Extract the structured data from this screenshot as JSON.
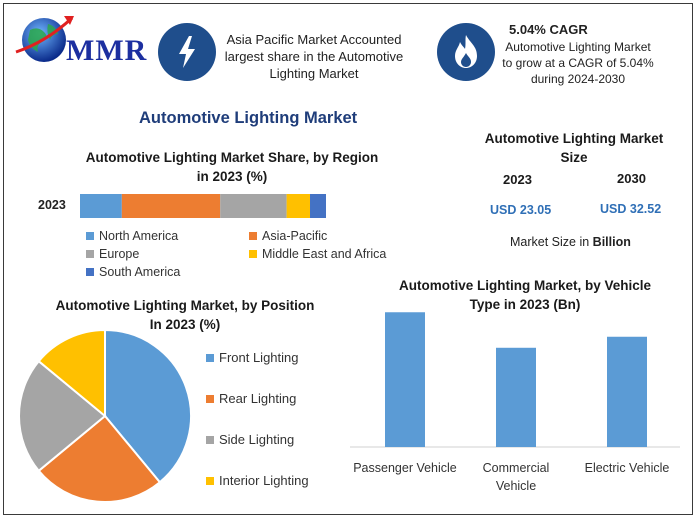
{
  "header": {
    "logo_text": "MMR",
    "badge1_icon": "lightning-icon",
    "badge1_text": [
      "Asia Pacific Market Accounted",
      "largest share in the Automotive",
      "Lighting Market"
    ],
    "badge2_icon": "flame-icon",
    "cagr_title": "5.04% CAGR",
    "badge2_text": [
      "Automotive Lighting Market",
      "to grow at a CAGR of 5.04%",
      "during 2024-2030"
    ]
  },
  "main_title": "Automotive Lighting Market",
  "market_size": {
    "title": [
      "Automotive Lighting Market",
      "Size"
    ],
    "year1": "2023",
    "year2": "2030",
    "value1": "USD 23.05",
    "value2": "USD 32.52",
    "unit_prefix": "Market Size in ",
    "unit_bold": "Billion"
  },
  "colors": {
    "blue": "#5b9bd5",
    "orange": "#ed7d31",
    "gray": "#a5a5a5",
    "yellow": "#ffc000",
    "darkblue": "#4472c4"
  },
  "chart_data": [
    {
      "type": "bar",
      "orientation": "horizontal-stacked",
      "title": [
        "Automotive Lighting Market Share, by Region",
        "in 2023 (%)"
      ],
      "categories": [
        "2023"
      ],
      "series": [
        {
          "name": "North America",
          "values": [
            17
          ],
          "color": "#5b9bd5"
        },
        {
          "name": "Asia-Pacific",
          "values": [
            40
          ],
          "color": "#ed7d31"
        },
        {
          "name": "Europe",
          "values": [
            27
          ],
          "color": "#a5a5a5"
        },
        {
          "name": "Middle East and Africa",
          "values": [
            9.5
          ],
          "color": "#ffc000"
        },
        {
          "name": "South America",
          "values": [
            6.5
          ],
          "color": "#4472c4"
        }
      ],
      "legend": "bottom"
    },
    {
      "type": "pie",
      "title": [
        "Automotive Lighting Market, by Position",
        "In 2023 (%)"
      ],
      "categories": [
        "Front Lighting",
        "Rear Lighting",
        "Side Lighting",
        "Interior Lighting"
      ],
      "values": [
        39,
        25,
        22,
        14
      ],
      "colors": [
        "#5b9bd5",
        "#ed7d31",
        "#a5a5a5",
        "#ffc000"
      ],
      "legend": "right"
    },
    {
      "type": "bar",
      "title": [
        "Automotive Lighting Market, by Vehicle",
        "Type in 2023 (Bn)"
      ],
      "categories": [
        "Passenger Vehicle",
        "Commercial Vehicle",
        "Electric Vehicle"
      ],
      "category_lines": [
        [
          "Passenger Vehicle"
        ],
        [
          "Commercial",
          "Vehicle"
        ],
        [
          "Electric Vehicle"
        ]
      ],
      "values": [
        11,
        8.1,
        9.0
      ],
      "color": "#5b9bd5",
      "ylim": [
        0,
        12
      ]
    }
  ]
}
